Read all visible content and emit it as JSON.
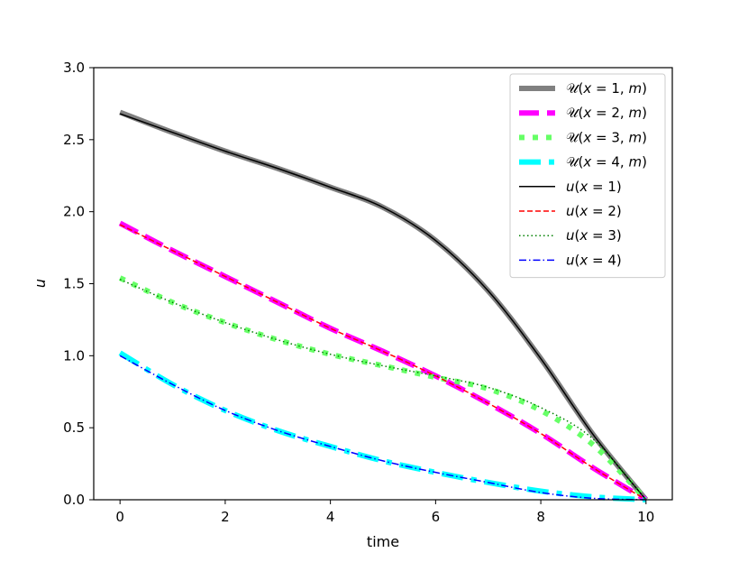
{
  "chart_data": {
    "type": "line",
    "xlabel": "time",
    "ylabel": "u",
    "xlim": [
      -0.5,
      10.5
    ],
    "ylim": [
      0.0,
      3.0
    ],
    "xticks": [
      {
        "value": 0,
        "label": "0"
      },
      {
        "value": 2,
        "label": "2"
      },
      {
        "value": 4,
        "label": "4"
      },
      {
        "value": 6,
        "label": "6"
      },
      {
        "value": 8,
        "label": "8"
      },
      {
        "value": 10,
        "label": "10"
      }
    ],
    "yticks": [
      {
        "value": 0.0,
        "label": "0.0"
      },
      {
        "value": 0.5,
        "label": "0.5"
      },
      {
        "value": 1.0,
        "label": "1.0"
      },
      {
        "value": 1.5,
        "label": "1.5"
      },
      {
        "value": 2.0,
        "label": "2.0"
      },
      {
        "value": 2.5,
        "label": "2.5"
      },
      {
        "value": 3.0,
        "label": "3.0"
      }
    ],
    "grid": false,
    "legend_position": "top-right",
    "x": [
      0,
      1,
      2,
      3,
      4,
      5,
      6,
      7,
      8,
      9,
      10
    ],
    "series": [
      {
        "name": "𝒰(x = 1, m)",
        "color": "#808080",
        "style": "solid-thick",
        "values": [
          2.69,
          2.55,
          2.42,
          2.3,
          2.17,
          2.03,
          1.8,
          1.45,
          0.98,
          0.45,
          0.0
        ]
      },
      {
        "name": "𝒰(x = 2, m)",
        "color": "#ff00ff",
        "style": "dashed-thick",
        "values": [
          1.92,
          1.73,
          1.55,
          1.37,
          1.19,
          1.03,
          0.86,
          0.67,
          0.46,
          0.22,
          0.0
        ]
      },
      {
        "name": "𝒰(x = 3, m)",
        "color": "#66ff66",
        "style": "dotted-thick",
        "values": [
          1.54,
          1.37,
          1.23,
          1.11,
          1.01,
          0.93,
          0.85,
          0.77,
          0.62,
          0.38,
          0.0
        ]
      },
      {
        "name": "𝒰(x = 4, m)",
        "color": "#00ffff",
        "style": "dashdot-thick",
        "values": [
          1.02,
          0.8,
          0.62,
          0.48,
          0.37,
          0.27,
          0.19,
          0.12,
          0.06,
          0.02,
          0.0
        ]
      },
      {
        "name": "u(x = 1)",
        "color": "#000000",
        "style": "solid",
        "values": [
          2.68,
          2.55,
          2.42,
          2.3,
          2.17,
          2.03,
          1.8,
          1.45,
          0.98,
          0.45,
          0.0
        ]
      },
      {
        "name": "u(x = 2)",
        "color": "#ff0000",
        "style": "dashed",
        "values": [
          1.91,
          1.73,
          1.55,
          1.37,
          1.19,
          1.03,
          0.86,
          0.67,
          0.46,
          0.22,
          0.0
        ]
      },
      {
        "name": "u(x = 3)",
        "color": "#008000",
        "style": "dotted",
        "values": [
          1.53,
          1.37,
          1.23,
          1.11,
          1.01,
          0.93,
          0.86,
          0.78,
          0.64,
          0.42,
          0.0
        ]
      },
      {
        "name": "u(x = 4)",
        "color": "#0000ff",
        "style": "dashdot",
        "values": [
          1.0,
          0.8,
          0.62,
          0.48,
          0.37,
          0.27,
          0.19,
          0.12,
          0.05,
          0.01,
          0.0
        ]
      }
    ],
    "legend_entries": [
      {
        "parts": [
          {
            "t": "𝒰",
            "it": false
          },
          {
            "t": "(",
            "it": false
          },
          {
            "t": "x",
            "it": true
          },
          {
            "t": " = 1, ",
            "it": false
          },
          {
            "t": "m",
            "it": true
          },
          {
            "t": ")",
            "it": false
          }
        ]
      },
      {
        "parts": [
          {
            "t": "𝒰",
            "it": false
          },
          {
            "t": "(",
            "it": false
          },
          {
            "t": "x",
            "it": true
          },
          {
            "t": " = 2, ",
            "it": false
          },
          {
            "t": "m",
            "it": true
          },
          {
            "t": ")",
            "it": false
          }
        ]
      },
      {
        "parts": [
          {
            "t": "𝒰",
            "it": false
          },
          {
            "t": "(",
            "it": false
          },
          {
            "t": "x",
            "it": true
          },
          {
            "t": " = 3, ",
            "it": false
          },
          {
            "t": "m",
            "it": true
          },
          {
            "t": ")",
            "it": false
          }
        ]
      },
      {
        "parts": [
          {
            "t": "𝒰",
            "it": false
          },
          {
            "t": "(",
            "it": false
          },
          {
            "t": "x",
            "it": true
          },
          {
            "t": " = 4, ",
            "it": false
          },
          {
            "t": "m",
            "it": true
          },
          {
            "t": ")",
            "it": false
          }
        ]
      },
      {
        "parts": [
          {
            "t": "u",
            "it": true
          },
          {
            "t": "(",
            "it": false
          },
          {
            "t": "x",
            "it": true
          },
          {
            "t": " = 1)",
            "it": false
          }
        ]
      },
      {
        "parts": [
          {
            "t": "u",
            "it": true
          },
          {
            "t": "(",
            "it": false
          },
          {
            "t": "x",
            "it": true
          },
          {
            "t": " = 2)",
            "it": false
          }
        ]
      },
      {
        "parts": [
          {
            "t": "u",
            "it": true
          },
          {
            "t": "(",
            "it": false
          },
          {
            "t": "x",
            "it": true
          },
          {
            "t": " = 3)",
            "it": false
          }
        ]
      },
      {
        "parts": [
          {
            "t": "u",
            "it": true
          },
          {
            "t": "(",
            "it": false
          },
          {
            "t": "x",
            "it": true
          },
          {
            "t": " = 4)",
            "it": false
          }
        ]
      }
    ]
  }
}
